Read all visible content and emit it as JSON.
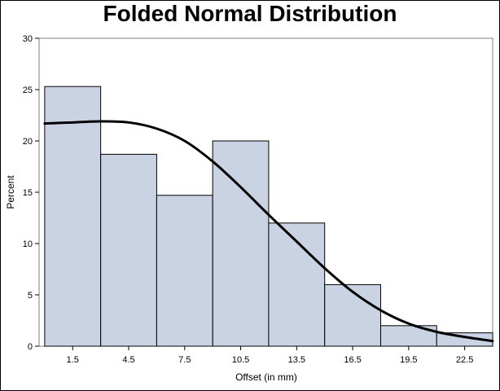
{
  "chart_data": {
    "type": "bar",
    "title": "Folded Normal Distribution",
    "xlabel": "Offset (in mm)",
    "ylabel": "Percent",
    "categories": [
      "1.5",
      "4.5",
      "7.5",
      "10.5",
      "13.5",
      "16.5",
      "19.5",
      "22.5"
    ],
    "bin_width": 3,
    "values": [
      25.3,
      18.7,
      14.7,
      20.0,
      12.0,
      6.0,
      2.0,
      1.3
    ],
    "xlim": [
      -0.3,
      24.0
    ],
    "ylim": [
      0,
      30
    ],
    "yticks": [
      0,
      5,
      10,
      15,
      20,
      25,
      30
    ],
    "grid": false,
    "bar_color": "#c9d3e3",
    "bar_edge_color": "#000000",
    "curve": {
      "type": "line",
      "color": "#000000",
      "x": [
        0,
        1.5,
        3,
        4.5,
        6,
        7.5,
        9,
        10.5,
        12,
        13.5,
        15,
        16.5,
        18,
        19.5,
        21,
        22.5,
        24
      ],
      "y": [
        21.7,
        21.8,
        21.9,
        21.8,
        21.2,
        20.0,
        18.0,
        15.5,
        12.8,
        10.2,
        7.6,
        5.3,
        3.5,
        2.2,
        1.4,
        0.9,
        0.5
      ]
    }
  }
}
